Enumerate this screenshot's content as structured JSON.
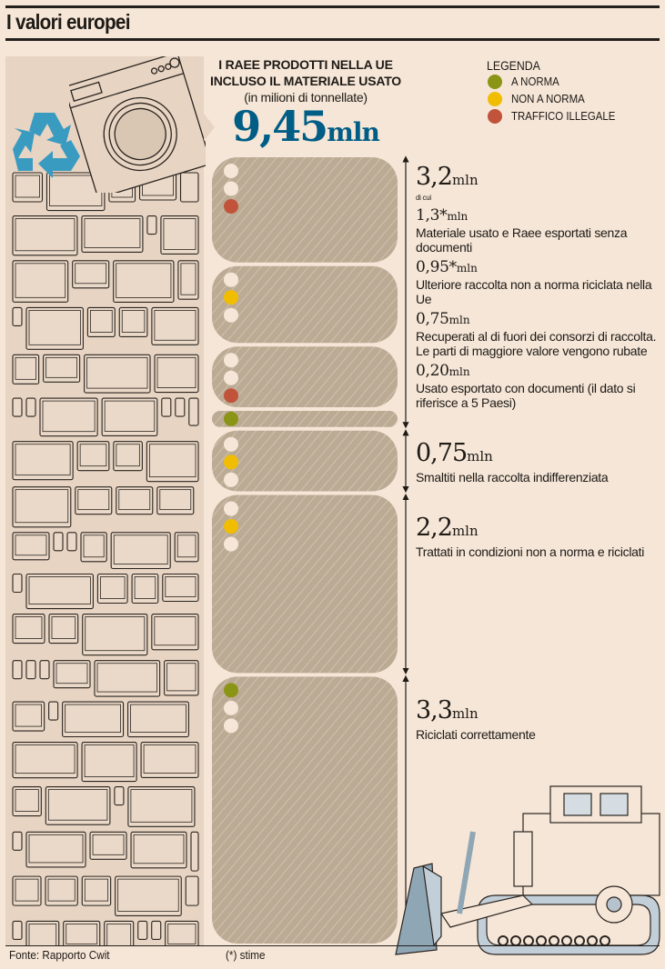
{
  "title": "I valori europei",
  "header": {
    "line1": "I RAEE PRODOTTI NELLA UE",
    "line2": "INCLUSO IL MATERIALE USATO",
    "line3": "(in milioni di tonnellate)",
    "total_value": "9,45",
    "total_unit": "mln"
  },
  "legend": {
    "title": "LEGENDA",
    "items": [
      {
        "label": "A NORMA",
        "color": "#8a9415"
      },
      {
        "label": "NON A NORMA",
        "color": "#f0bd00"
      },
      {
        "label": "TRAFFICO ILLEGALE",
        "color": "#c0533a"
      }
    ]
  },
  "annotations": {
    "group1": {
      "value": "3,2",
      "unit": "mln",
      "di_cui": "di cui"
    },
    "item1": {
      "value": "1,3*",
      "unit": "mln",
      "text": "Materiale usato e Raee esportati senza documenti"
    },
    "item2": {
      "value": "0,95*",
      "unit": "mln",
      "text": "Ulteriore raccolta non a norma riciclata nella Ue"
    },
    "item3": {
      "value": "0,75",
      "unit": "mln",
      "text": "Recuperati al di fuori dei consorzi di raccolta. Le parti di maggiore valore vengono rubate"
    },
    "item4": {
      "value": "0,20",
      "unit": "mln",
      "text": "Usato esportato con documenti (il dato si riferisce a 5 Paesi)"
    },
    "group2": {
      "value": "0,75",
      "unit": "mln",
      "text": "Smaltiti nella raccolta indifferenziata"
    },
    "group3": {
      "value": "2,2",
      "unit": "mln",
      "text": "Trattati in condizioni non a norma e riciclati"
    },
    "group4": {
      "value": "3,3",
      "unit": "mln",
      "text": "Riciclati correttamente"
    }
  },
  "footer": {
    "source": "Fonte: Rapporto Cwit",
    "note": "(*) stime"
  },
  "chart_data": {
    "type": "bar",
    "title": "I RAEE prodotti nella UE incluso il materiale usato",
    "ylabel": "milioni di tonnellate",
    "total": 9.45,
    "stacked": true,
    "categories": [
      "Materiale usato e Raee esportati senza documenti",
      "Ulteriore raccolta non a norma riciclata nella Ue",
      "Recuperati al di fuori dei consorzi di raccolta",
      "Usato esportato con documenti",
      "Smaltiti nella raccolta indifferenziata",
      "Trattati in condizioni non a norma e riciclati",
      "Riciclati correttamente"
    ],
    "values": [
      1.3,
      0.95,
      0.75,
      0.2,
      0.75,
      2.2,
      3.3
    ],
    "status": [
      "traffico illegale",
      "non a norma",
      "traffico illegale",
      "a norma",
      "non a norma",
      "non a norma",
      "a norma"
    ],
    "groups": [
      {
        "label": "3,2 mln",
        "value": 3.2,
        "members": [
          0,
          1,
          2,
          3
        ]
      },
      {
        "label": "0,75 mln",
        "value": 0.75,
        "members": [
          4
        ]
      },
      {
        "label": "2,2 mln",
        "value": 2.2,
        "members": [
          5
        ]
      },
      {
        "label": "3,3 mln",
        "value": 3.3,
        "members": [
          6
        ]
      }
    ],
    "estimated": [
      true,
      true,
      false,
      false,
      false,
      false,
      false
    ]
  }
}
